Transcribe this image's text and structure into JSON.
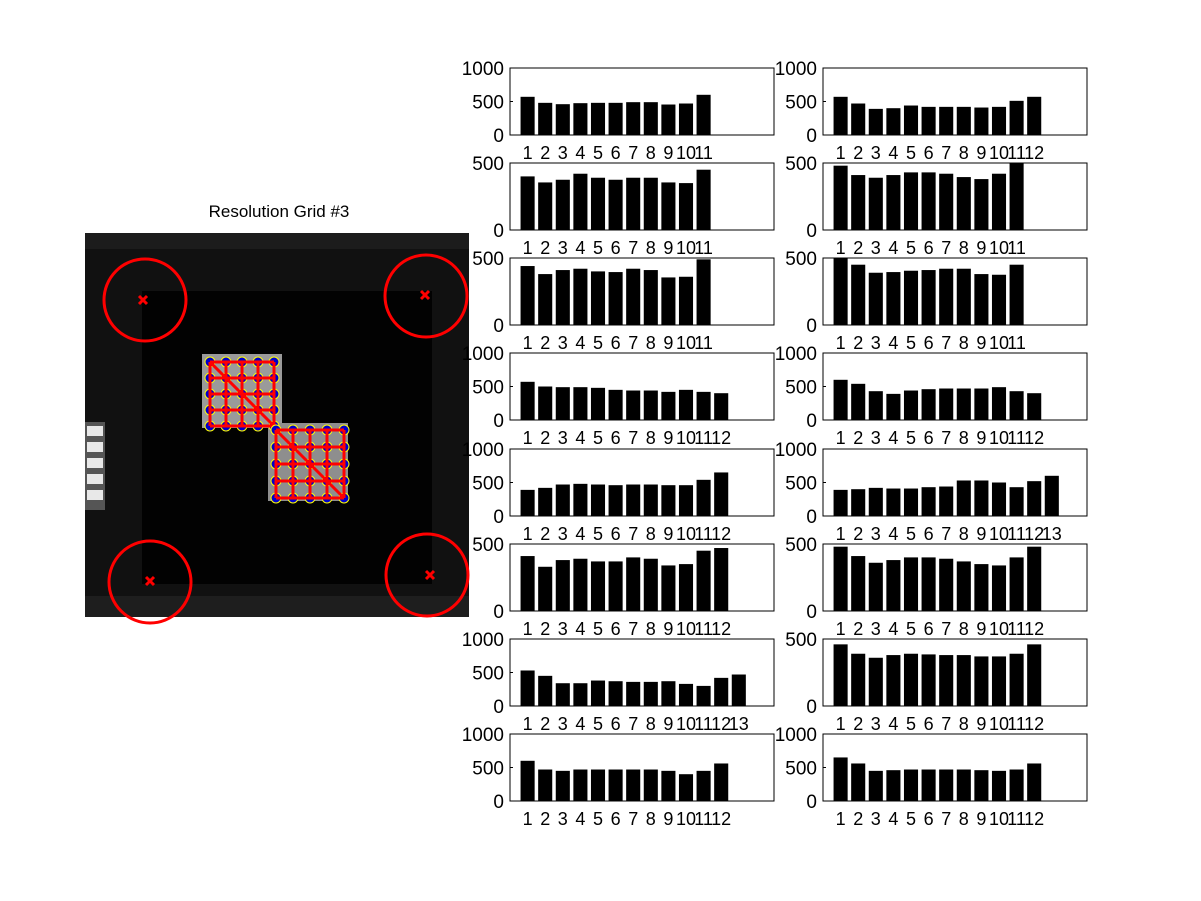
{
  "image_panel": {
    "title": "Resolution Grid #3",
    "colors": {
      "circle": "#ff0000",
      "cross": "#ff0000",
      "dot": "#0000cc",
      "halo": "#ffff00"
    }
  },
  "chart_data": [
    {
      "type": "bar",
      "categories": [
        "1",
        "2",
        "3",
        "4",
        "5",
        "6",
        "7",
        "8",
        "9",
        "10",
        "11"
      ],
      "values": [
        570,
        480,
        460,
        475,
        480,
        480,
        490,
        490,
        455,
        470,
        600
      ],
      "ylim": [
        0,
        1000
      ],
      "yticks": [
        0,
        500,
        1000
      ]
    },
    {
      "type": "bar",
      "categories": [
        "1",
        "2",
        "3",
        "4",
        "5",
        "6",
        "7",
        "8",
        "9",
        "10",
        "11",
        "12"
      ],
      "values": [
        570,
        470,
        390,
        400,
        440,
        420,
        420,
        420,
        410,
        420,
        510,
        570
      ],
      "ylim": [
        0,
        1000
      ],
      "yticks": [
        0,
        500,
        1000
      ]
    },
    {
      "type": "bar",
      "categories": [
        "1",
        "2",
        "3",
        "4",
        "5",
        "6",
        "7",
        "8",
        "9",
        "10",
        "11"
      ],
      "values": [
        400,
        355,
        375,
        420,
        390,
        375,
        390,
        390,
        355,
        350,
        450
      ],
      "ylim": [
        0,
        500
      ],
      "yticks": [
        0,
        500
      ]
    },
    {
      "type": "bar",
      "categories": [
        "1",
        "2",
        "3",
        "4",
        "5",
        "6",
        "7",
        "8",
        "9",
        "10",
        "11"
      ],
      "values": [
        480,
        410,
        390,
        410,
        430,
        430,
        420,
        395,
        380,
        420,
        500
      ],
      "ylim": [
        0,
        500
      ],
      "yticks": [
        0,
        500
      ]
    },
    {
      "type": "bar",
      "categories": [
        "1",
        "2",
        "3",
        "4",
        "5",
        "6",
        "7",
        "8",
        "9",
        "10",
        "11"
      ],
      "values": [
        440,
        380,
        410,
        420,
        400,
        395,
        420,
        410,
        355,
        360,
        490
      ],
      "ylim": [
        0,
        500
      ],
      "yticks": [
        0,
        500
      ]
    },
    {
      "type": "bar",
      "categories": [
        "1",
        "2",
        "3",
        "4",
        "5",
        "6",
        "7",
        "8",
        "9",
        "10",
        "11"
      ],
      "values": [
        500,
        450,
        390,
        395,
        405,
        410,
        420,
        420,
        380,
        375,
        450
      ],
      "ylim": [
        0,
        500
      ],
      "yticks": [
        0,
        500
      ]
    },
    {
      "type": "bar",
      "categories": [
        "1",
        "2",
        "3",
        "4",
        "5",
        "6",
        "7",
        "8",
        "9",
        "10",
        "11",
        "12"
      ],
      "values": [
        570,
        500,
        490,
        490,
        480,
        450,
        440,
        440,
        420,
        450,
        420,
        400
      ],
      "ylim": [
        0,
        1000
      ],
      "yticks": [
        0,
        500,
        1000
      ]
    },
    {
      "type": "bar",
      "categories": [
        "1",
        "2",
        "3",
        "4",
        "5",
        "6",
        "7",
        "8",
        "9",
        "10",
        "11",
        "12"
      ],
      "values": [
        600,
        540,
        430,
        390,
        440,
        460,
        470,
        470,
        470,
        490,
        430,
        400
      ],
      "ylim": [
        0,
        1000
      ],
      "yticks": [
        0,
        500,
        1000
      ]
    },
    {
      "type": "bar",
      "categories": [
        "1",
        "2",
        "3",
        "4",
        "5",
        "6",
        "7",
        "8",
        "9",
        "10",
        "11",
        "12"
      ],
      "values": [
        390,
        420,
        470,
        480,
        470,
        460,
        470,
        470,
        460,
        460,
        540,
        650
      ],
      "ylim": [
        0,
        1000
      ],
      "yticks": [
        0,
        500,
        1000
      ]
    },
    {
      "type": "bar",
      "categories": [
        "1",
        "2",
        "3",
        "4",
        "5",
        "6",
        "7",
        "8",
        "9",
        "10",
        "11",
        "12",
        "13"
      ],
      "values": [
        390,
        400,
        420,
        410,
        410,
        430,
        440,
        530,
        530,
        500,
        430,
        520,
        600
      ],
      "ylim": [
        0,
        1000
      ],
      "yticks": [
        0,
        500,
        1000
      ]
    },
    {
      "type": "bar",
      "categories": [
        "1",
        "2",
        "3",
        "4",
        "5",
        "6",
        "7",
        "8",
        "9",
        "10",
        "11",
        "12"
      ],
      "values": [
        410,
        330,
        380,
        390,
        370,
        370,
        400,
        390,
        340,
        350,
        450,
        470
      ],
      "ylim": [
        0,
        500
      ],
      "yticks": [
        0,
        500
      ]
    },
    {
      "type": "bar",
      "categories": [
        "1",
        "2",
        "3",
        "4",
        "5",
        "6",
        "7",
        "8",
        "9",
        "10",
        "11",
        "12"
      ],
      "values": [
        480,
        410,
        360,
        380,
        400,
        400,
        390,
        370,
        350,
        340,
        400,
        480
      ],
      "ylim": [
        0,
        500
      ],
      "yticks": [
        0,
        500
      ]
    },
    {
      "type": "bar",
      "categories": [
        "1",
        "2",
        "3",
        "4",
        "5",
        "6",
        "7",
        "8",
        "9",
        "10",
        "11",
        "12",
        "13"
      ],
      "values": [
        530,
        450,
        340,
        340,
        380,
        370,
        360,
        360,
        370,
        330,
        300,
        420,
        470
      ],
      "ylim": [
        0,
        1000
      ],
      "yticks": [
        0,
        500,
        1000
      ]
    },
    {
      "type": "bar",
      "categories": [
        "1",
        "2",
        "3",
        "4",
        "5",
        "6",
        "7",
        "8",
        "9",
        "10",
        "11",
        "12"
      ],
      "values": [
        460,
        390,
        360,
        380,
        390,
        385,
        380,
        380,
        370,
        370,
        390,
        460
      ],
      "ylim": [
        0,
        500
      ],
      "yticks": [
        0,
        500
      ]
    },
    {
      "type": "bar",
      "categories": [
        "1",
        "2",
        "3",
        "4",
        "5",
        "6",
        "7",
        "8",
        "9",
        "10",
        "11",
        "12"
      ],
      "values": [
        600,
        470,
        450,
        470,
        470,
        470,
        470,
        470,
        450,
        400,
        450,
        560
      ],
      "ylim": [
        0,
        1000
      ],
      "yticks": [
        0,
        500,
        1000
      ]
    },
    {
      "type": "bar",
      "categories": [
        "1",
        "2",
        "3",
        "4",
        "5",
        "6",
        "7",
        "8",
        "9",
        "10",
        "11",
        "12"
      ],
      "values": [
        650,
        560,
        450,
        460,
        470,
        470,
        470,
        470,
        460,
        450,
        470,
        560
      ],
      "ylim": [
        0,
        1000
      ],
      "yticks": [
        0,
        500,
        1000
      ]
    }
  ]
}
